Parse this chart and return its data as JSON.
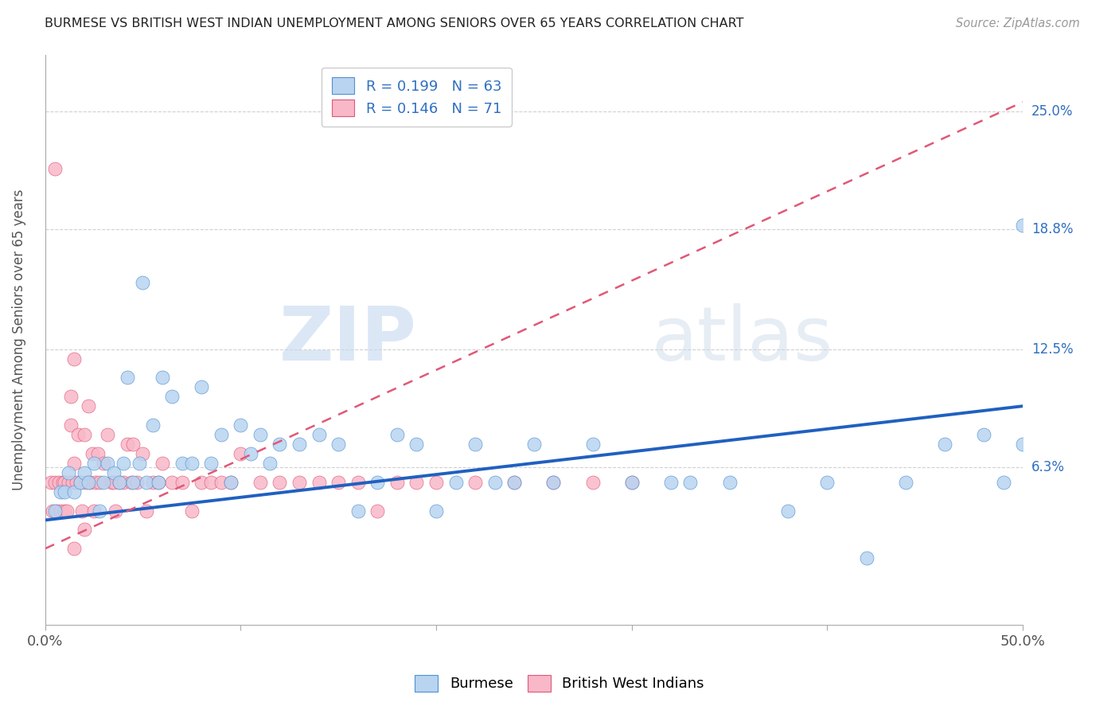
{
  "title": "BURMESE VS BRITISH WEST INDIAN UNEMPLOYMENT AMONG SENIORS OVER 65 YEARS CORRELATION CHART",
  "source": "Source: ZipAtlas.com",
  "ylabel": "Unemployment Among Seniors over 65 years",
  "xlim": [
    0.0,
    0.5
  ],
  "ylim": [
    -0.02,
    0.28
  ],
  "ytick_positions": [
    0.063,
    0.125,
    0.188,
    0.25
  ],
  "ytick_labels": [
    "6.3%",
    "12.5%",
    "18.8%",
    "25.0%"
  ],
  "burmese_R": 0.199,
  "burmese_N": 63,
  "bwi_R": 0.146,
  "bwi_N": 71,
  "burmese_color": "#b8d4f0",
  "bwi_color": "#f8b8c8",
  "burmese_edge_color": "#5090d0",
  "bwi_edge_color": "#e05878",
  "burmese_line_color": "#2060c0",
  "bwi_line_color": "#e05878",
  "watermark_zip": "ZIP",
  "watermark_atlas": "atlas",
  "burmese_x": [
    0.005,
    0.008,
    0.01,
    0.012,
    0.015,
    0.018,
    0.02,
    0.022,
    0.025,
    0.028,
    0.03,
    0.032,
    0.035,
    0.038,
    0.04,
    0.042,
    0.045,
    0.048,
    0.05,
    0.052,
    0.055,
    0.058,
    0.06,
    0.065,
    0.07,
    0.075,
    0.08,
    0.085,
    0.09,
    0.095,
    0.1,
    0.105,
    0.11,
    0.115,
    0.12,
    0.13,
    0.14,
    0.15,
    0.16,
    0.17,
    0.18,
    0.19,
    0.2,
    0.21,
    0.22,
    0.23,
    0.24,
    0.25,
    0.26,
    0.28,
    0.3,
    0.32,
    0.33,
    0.35,
    0.38,
    0.4,
    0.42,
    0.44,
    0.46,
    0.48,
    0.49,
    0.5,
    0.5
  ],
  "burmese_y": [
    0.04,
    0.05,
    0.05,
    0.06,
    0.05,
    0.055,
    0.06,
    0.055,
    0.065,
    0.04,
    0.055,
    0.065,
    0.06,
    0.055,
    0.065,
    0.11,
    0.055,
    0.065,
    0.16,
    0.055,
    0.085,
    0.055,
    0.11,
    0.1,
    0.065,
    0.065,
    0.105,
    0.065,
    0.08,
    0.055,
    0.085,
    0.07,
    0.08,
    0.065,
    0.075,
    0.075,
    0.08,
    0.075,
    0.04,
    0.055,
    0.08,
    0.075,
    0.04,
    0.055,
    0.075,
    0.055,
    0.055,
    0.075,
    0.055,
    0.075,
    0.055,
    0.055,
    0.055,
    0.055,
    0.04,
    0.055,
    0.015,
    0.055,
    0.075,
    0.08,
    0.055,
    0.075,
    0.19
  ],
  "bwi_x": [
    0.003,
    0.004,
    0.005,
    0.005,
    0.006,
    0.007,
    0.008,
    0.009,
    0.01,
    0.01,
    0.011,
    0.012,
    0.013,
    0.013,
    0.014,
    0.015,
    0.015,
    0.015,
    0.016,
    0.017,
    0.018,
    0.019,
    0.02,
    0.02,
    0.021,
    0.022,
    0.023,
    0.024,
    0.025,
    0.026,
    0.027,
    0.028,
    0.03,
    0.032,
    0.034,
    0.035,
    0.036,
    0.038,
    0.04,
    0.042,
    0.044,
    0.045,
    0.047,
    0.05,
    0.052,
    0.055,
    0.058,
    0.06,
    0.065,
    0.07,
    0.075,
    0.08,
    0.085,
    0.09,
    0.095,
    0.1,
    0.11,
    0.12,
    0.13,
    0.14,
    0.15,
    0.16,
    0.17,
    0.18,
    0.19,
    0.2,
    0.22,
    0.24,
    0.26,
    0.28,
    0.3
  ],
  "bwi_y": [
    0.055,
    0.04,
    0.055,
    0.22,
    0.04,
    0.055,
    0.04,
    0.055,
    0.04,
    0.055,
    0.04,
    0.055,
    0.1,
    0.085,
    0.055,
    0.12,
    0.065,
    0.02,
    0.055,
    0.08,
    0.055,
    0.04,
    0.08,
    0.03,
    0.055,
    0.095,
    0.055,
    0.07,
    0.04,
    0.055,
    0.07,
    0.055,
    0.065,
    0.08,
    0.055,
    0.055,
    0.04,
    0.055,
    0.055,
    0.075,
    0.055,
    0.075,
    0.055,
    0.07,
    0.04,
    0.055,
    0.055,
    0.065,
    0.055,
    0.055,
    0.04,
    0.055,
    0.055,
    0.055,
    0.055,
    0.07,
    0.055,
    0.055,
    0.055,
    0.055,
    0.055,
    0.055,
    0.04,
    0.055,
    0.055,
    0.055,
    0.055,
    0.055,
    0.055,
    0.055,
    0.055
  ]
}
